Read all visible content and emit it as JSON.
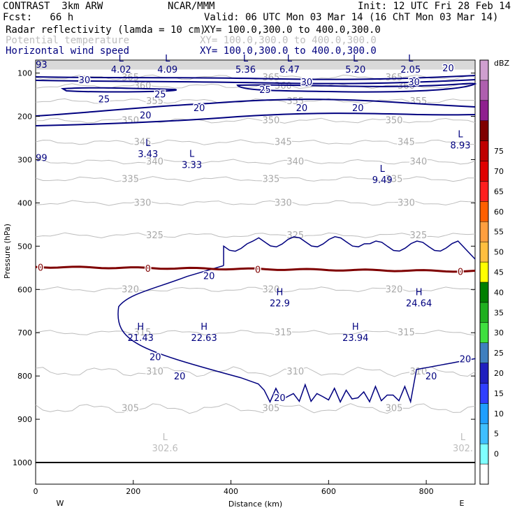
{
  "header": {
    "model": "CONTRAST  3km ARW",
    "org": "NCAR/MMM",
    "init": "Init: 12 UTC Fri 28 Feb 14",
    "fcst": "Fcst:   66 h",
    "valid": "Valid: 06 UTC Mon 03 Mar 14 (16 ChT Mon 03 Mar 14)",
    "fields": [
      {
        "name": "Radar reflectivity (lamda = 10 cm)",
        "xy": "XY= 100.0,300.0 to 400.0,300.0",
        "color": "#000000"
      },
      {
        "name": "Potential temperature",
        "xy": "XY= 100.0,300.0 to 400.0,300.0",
        "color": "#bdbdbd"
      },
      {
        "name": "Horizontal wind speed",
        "xy": "XY= 100.0,300.0 to 400.0,300.0",
        "color": "#00007f"
      }
    ]
  },
  "chart_data": {
    "type": "cross-section",
    "xlabel": "Distance (km)",
    "ylabel": "Pressure (hPa)",
    "xlim": [
      0,
      900
    ],
    "ylim": [
      1050,
      70
    ],
    "xticks": [
      0,
      200,
      400,
      600,
      800
    ],
    "yticks": [
      100,
      200,
      300,
      400,
      500,
      600,
      700,
      800,
      900,
      1000
    ],
    "x_end_labels": {
      "left": "W",
      "right": "E"
    },
    "colorbar": {
      "unit": "dBZ",
      "levels": [
        0,
        5,
        10,
        15,
        20,
        25,
        30,
        35,
        40,
        45,
        50,
        55,
        60,
        65,
        70,
        75
      ],
      "colors": [
        "#ffffff",
        "#7fffff",
        "#3fbfff",
        "#1f9fff",
        "#2f3fff",
        "#1f1fbf",
        "#3f7fbf",
        "#3fdf3f",
        "#1faf1f",
        "#007f00",
        "#ffff00",
        "#ffbf3f",
        "#ff9f3f",
        "#ff5f00",
        "#ff1f1f",
        "#df0000",
        "#bf0000",
        "#7f0000",
        "#8f1f8f",
        "#af5faf",
        "#cf9fcf"
      ]
    },
    "theta_contours": [
      {
        "label": "365",
        "p": 110
      },
      {
        "label": "360",
        "p": 130
      },
      {
        "label": "355",
        "p": 165
      },
      {
        "label": "350",
        "p": 210
      },
      {
        "label": "345",
        "p": 260
      },
      {
        "label": "340",
        "p": 305
      },
      {
        "label": "335",
        "p": 345
      },
      {
        "label": "330",
        "p": 400
      },
      {
        "label": "325",
        "p": 475
      },
      {
        "label": "320",
        "p": 600
      },
      {
        "label": "315",
        "p": 700
      },
      {
        "label": "310",
        "p": 790
      },
      {
        "label": "305",
        "p": 875
      }
    ],
    "wind_contour_labels": [
      {
        "label": "30",
        "x": 100,
        "p": 115
      },
      {
        "label": "30",
        "x": 555,
        "p": 120
      },
      {
        "label": "30",
        "x": 775,
        "p": 120
      },
      {
        "label": "20",
        "x": 845,
        "p": 88
      },
      {
        "label": "25",
        "x": 140,
        "p": 160
      },
      {
        "label": "25",
        "x": 255,
        "p": 148
      },
      {
        "label": "25",
        "x": 470,
        "p": 138
      },
      {
        "label": "20",
        "x": 225,
        "p": 197
      },
      {
        "label": "20",
        "x": 335,
        "p": 180
      },
      {
        "label": "20",
        "x": 545,
        "p": 180
      },
      {
        "label": "20",
        "x": 660,
        "p": 180
      },
      {
        "label": "20",
        "x": 355,
        "p": 568
      },
      {
        "label": "20",
        "x": 245,
        "p": 755
      },
      {
        "label": "20",
        "x": 295,
        "p": 800
      },
      {
        "label": "20",
        "x": 500,
        "p": 850
      },
      {
        "label": "20",
        "x": 810,
        "p": 800
      },
      {
        "label": "20",
        "x": 880,
        "p": 760
      }
    ],
    "freezing_level_label": "0",
    "extrema": [
      {
        "type": "L",
        "value": "4.02",
        "x": 175,
        "p": 80,
        "color": "#00007f"
      },
      {
        "type": "L",
        "value": "4.09",
        "x": 270,
        "p": 80,
        "color": "#00007f"
      },
      {
        "type": "L",
        "value": "5.36",
        "x": 430,
        "p": 80,
        "color": "#00007f"
      },
      {
        "type": "L",
        "value": "6.47",
        "x": 520,
        "p": 80,
        "color": "#00007f"
      },
      {
        "type": "L",
        "value": "5.20",
        "x": 655,
        "p": 80,
        "color": "#00007f"
      },
      {
        "type": "L",
        "value": "2.05",
        "x": 768,
        "p": 80,
        "color": "#00007f"
      },
      {
        "type": "L",
        "value": "3.43",
        "x": 230,
        "p": 275,
        "color": "#00007f"
      },
      {
        "type": "L",
        "value": "3.33",
        "x": 320,
        "p": 300,
        "color": "#00007f"
      },
      {
        "type": "L",
        "value": "9.49",
        "x": 710,
        "p": 335,
        "color": "#00007f"
      },
      {
        "type": "L",
        "value": "8.93",
        "x": 870,
        "p": 255,
        "color": "#00007f"
      },
      {
        "type": "H",
        "value": "21.43",
        "x": 215,
        "p": 700,
        "color": "#00007f"
      },
      {
        "type": "H",
        "value": "22.63",
        "x": 345,
        "p": 700,
        "color": "#00007f"
      },
      {
        "type": "H",
        "value": "22.9",
        "x": 500,
        "p": 620,
        "color": "#00007f"
      },
      {
        "type": "H",
        "value": "23.94",
        "x": 655,
        "p": 700,
        "color": "#00007f"
      },
      {
        "type": "H",
        "value": "24.64",
        "x": 785,
        "p": 620,
        "color": "#00007f"
      },
      {
        "type": "L",
        "value": "302.6",
        "x": 265,
        "p": 955,
        "color": "#bdbdbd"
      },
      {
        "type": "L",
        "value": "302.",
        "x": 875,
        "p": 955,
        "color": "#bdbdbd"
      }
    ],
    "edge_values": [
      {
        "text": "93",
        "x": 12,
        "p": 80,
        "color": "#00007f"
      },
      {
        "text": "99",
        "x": 12,
        "p": 295,
        "color": "#00007f"
      }
    ]
  }
}
